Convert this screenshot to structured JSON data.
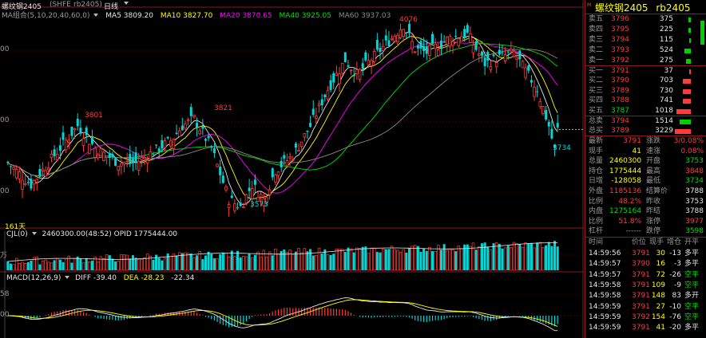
{
  "header": {
    "contract": "螺纹钢2405",
    "exchange": "(SHFE",
    "code": "rb2405)",
    "period": "日线",
    "title_label": "螺纹钢2405"
  },
  "ma_legend": {
    "label": "MA组合(5,10,20,40,60,0)",
    "items": [
      {
        "text": "MA5 3809.20",
        "color": "#e6e6e6"
      },
      {
        "text": "MA10 3827.70",
        "color": "#ffff00"
      },
      {
        "text": "MA20 3870.65",
        "color": "#ff00ff"
      },
      {
        "text": "MA40 3925.05",
        "color": "#00e000"
      },
      {
        "text": "MA60 3937.03",
        "color": "#8a8a8a"
      }
    ]
  },
  "price_annotations": {
    "a3801": "3801",
    "a3821": "3821",
    "a4076": "4076",
    "a3573": "3573",
    "a3734": "3734",
    "days": "161天"
  },
  "left_axis": {
    "t1": "00",
    "t2": "00",
    "t3": "00",
    "t4": "万",
    "t5": "58",
    "t6": "00"
  },
  "volume_legend": {
    "label": "CJL(0)",
    "text": "2460300.00(48:52)  OPID 1775444.00"
  },
  "macd_legend": {
    "label": "MACD(12,26,9)",
    "diff": "DIFF -39.40",
    "dea": "DEA -28.23",
    "macd": "-22.34"
  },
  "panel": {
    "name": "螺纹钢2405",
    "code": "rb2405",
    "asks": [
      {
        "label": "卖五",
        "price": "3796",
        "vol": "375"
      },
      {
        "label": "卖四",
        "price": "3795",
        "vol": "225"
      },
      {
        "label": "卖三",
        "price": "3794",
        "vol": "115"
      },
      {
        "label": "卖二",
        "price": "3793",
        "vol": "524"
      },
      {
        "label": "卖一",
        "price": "3792",
        "vol": "275"
      }
    ],
    "bids": [
      {
        "label": "买一",
        "price": "3791",
        "vol": "37"
      },
      {
        "label": "买二",
        "price": "3790",
        "vol": "703"
      },
      {
        "label": "买三",
        "price": "3789",
        "vol": "730"
      },
      {
        "label": "买四",
        "price": "3788",
        "vol": "741"
      },
      {
        "label": "买五",
        "price": "3787",
        "vol": "1018"
      }
    ],
    "totals": [
      {
        "label": "总卖",
        "price": "3794",
        "vol": "1514"
      },
      {
        "label": "总买",
        "price": "3789",
        "vol": "3229"
      }
    ],
    "stats": [
      {
        "l1": "最新",
        "v1": "3791",
        "l2": "涨跌",
        "v2": "3/0.08%"
      },
      {
        "l1": "现手",
        "v1": "41",
        "l2": "速涨",
        "v2": "0.08%"
      },
      {
        "l1": "总量",
        "v1": "2460300",
        "l2": "开盘",
        "v2": "3753"
      },
      {
        "l1": "持仓",
        "v1": "1775444",
        "l2": "最高",
        "v2": "3848"
      },
      {
        "l1": "日增",
        "v1": "-128058",
        "l2": "最低",
        "v2": "3734"
      },
      {
        "l1": "外盘",
        "v1": "1185136",
        "l2": "结算价",
        "v2": "3788"
      },
      {
        "l1": "比例",
        "v1": "48.2%",
        "l2": "昨收",
        "v2": "3753"
      },
      {
        "l1": "内盘",
        "v1": "1275164",
        "l2": "昨结",
        "v2": "3788"
      },
      {
        "l1": "比例",
        "v1": "51.8%",
        "l2": "涨停",
        "v2": "3977"
      },
      {
        "l1": "杠杆",
        "v1": "------",
        "l2": "跌停",
        "v2": "3598"
      }
    ],
    "trades_header": {
      "time": "时间",
      "price": "价位",
      "qty": "现手",
      "chg": "增仓",
      "type": "开平"
    },
    "trades": [
      {
        "time": "14:59:56",
        "price": "3791",
        "qty": "30",
        "chg": "-13",
        "type": "多平"
      },
      {
        "time": "14:59:57",
        "price": "3790",
        "qty": "16",
        "chg": "-3",
        "type": "多平"
      },
      {
        "time": "14:59:57",
        "price": "3791",
        "qty": "72",
        "chg": "-26",
        "type": "空平"
      },
      {
        "time": "14:59:58",
        "price": "3791",
        "qty": "109",
        "chg": "-9",
        "type": "空平"
      },
      {
        "time": "14:59:58",
        "price": "3791",
        "qty": "148",
        "chg": "83",
        "type": "多开"
      },
      {
        "time": "14:59:59",
        "price": "3791",
        "qty": "27",
        "chg": "-10",
        "type": "空平"
      },
      {
        "time": "14:59:59",
        "price": "3792",
        "qty": "154",
        "chg": "-76",
        "type": "空平"
      },
      {
        "time": "14:59:59",
        "price": "3791",
        "qty": "41",
        "chg": "-20",
        "type": "多平"
      }
    ]
  },
  "colors": {
    "up": "#ff3b3b",
    "down": "#00d8d8",
    "border": "#8a1c1c"
  }
}
